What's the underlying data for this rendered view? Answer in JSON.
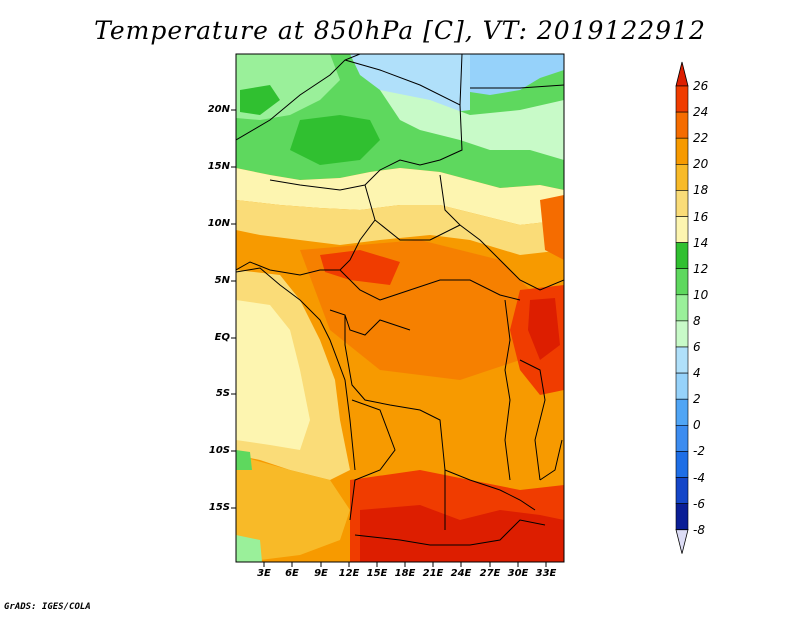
{
  "title": "Temperature at 850hPa [C], VT: 2019122912",
  "footer": "GrADS: IGES/COLA",
  "map": {
    "variable": "Temperature at 850hPa",
    "units": "C",
    "valid_time": "2019122912",
    "lat_labels": [
      "20N",
      "15N",
      "10N",
      "5N",
      "EQ",
      "5S",
      "10S",
      "15S"
    ],
    "lon_labels": [
      "3E",
      "6E",
      "9E",
      "12E",
      "15E",
      "18E",
      "21E",
      "24E",
      "27E",
      "30E",
      "33E"
    ]
  },
  "colorbar": {
    "labels": [
      "26",
      "24",
      "22",
      "20",
      "18",
      "16",
      "14",
      "12",
      "10",
      "8",
      "6",
      "4",
      "2",
      "0",
      "-2",
      "-4",
      "-6",
      "-8"
    ],
    "colors": [
      "#dd1e00",
      "#f03c00",
      "#f56c00",
      "#f79a00",
      "#f8ba28",
      "#fadc78",
      "#fdf5b0",
      "#30c030",
      "#5ed85e",
      "#9af09a",
      "#c8fac8",
      "#b0e0fa",
      "#96d2fa",
      "#50a5f5",
      "#3c8cf0",
      "#1e6ee6",
      "#1446c8",
      "#0a1e96",
      "#000064"
    ]
  }
}
